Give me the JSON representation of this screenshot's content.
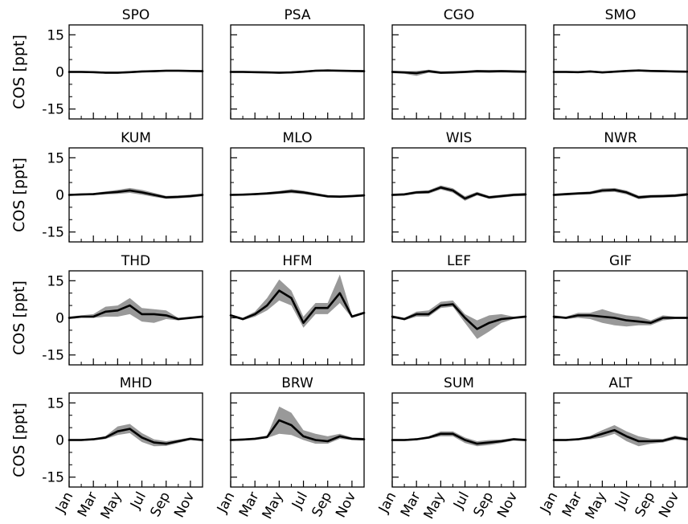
{
  "chart_data": {
    "type": "line",
    "ylabel": "COS [ppt]",
    "ylim": [
      -19,
      19
    ],
    "yticks": [
      15,
      0,
      -15
    ],
    "ytick_labels": [
      "15",
      "0",
      "-15"
    ],
    "xlim": [
      1,
      12
    ],
    "months": [
      1,
      2,
      3,
      4,
      5,
      6,
      7,
      8,
      9,
      10,
      11,
      12
    ],
    "xtick_labels": [
      "Jan",
      "Mar",
      "May",
      "Jul",
      "Sep",
      "Nov"
    ],
    "colors": {
      "mean_line": "#000000",
      "band": "#999999"
    },
    "panels": [
      {
        "title": "SPO",
        "mean": [
          0,
          0,
          -0.1,
          -0.3,
          -0.3,
          -0.1,
          0.2,
          0.3,
          0.5,
          0.5,
          0.4,
          0.3
        ],
        "lower": [
          -0.4,
          -0.4,
          -0.5,
          -0.7,
          -0.7,
          -0.5,
          -0.2,
          -0.1,
          0.1,
          0.1,
          0,
          -0.1
        ],
        "upper": [
          0.4,
          0.4,
          0.3,
          0.1,
          0.1,
          0.3,
          0.6,
          0.7,
          0.9,
          0.9,
          0.8,
          0.7
        ]
      },
      {
        "title": "PSA",
        "mean": [
          0,
          0,
          -0.1,
          -0.2,
          -0.3,
          -0.2,
          0.1,
          0.5,
          0.6,
          0.5,
          0.4,
          0.3
        ],
        "lower": [
          -0.4,
          -0.4,
          -0.5,
          -0.6,
          -0.7,
          -0.6,
          -0.3,
          0.1,
          0.2,
          0.1,
          0,
          -0.1
        ],
        "upper": [
          0.4,
          0.4,
          0.3,
          0.2,
          0.1,
          0.2,
          0.5,
          0.9,
          1.0,
          0.9,
          0.8,
          0.7
        ]
      },
      {
        "title": "CGO",
        "mean": [
          0,
          -0.2,
          -0.5,
          0.3,
          -0.3,
          -0.2,
          0,
          0.3,
          0.2,
          0.3,
          0.2,
          0.1
        ],
        "lower": [
          -0.5,
          -0.7,
          -1.6,
          -0.3,
          -0.8,
          -0.7,
          -0.5,
          -0.3,
          -0.3,
          -0.2,
          -0.3,
          -0.4
        ],
        "upper": [
          0.5,
          0.3,
          0.4,
          0.9,
          0.2,
          0.3,
          0.5,
          0.8,
          0.8,
          0.8,
          0.7,
          0.6
        ]
      },
      {
        "title": "SMO",
        "mean": [
          0,
          0,
          -0.1,
          0.2,
          -0.2,
          0.1,
          0.4,
          0.6,
          0.4,
          0.3,
          0.2,
          0.1
        ],
        "lower": [
          -0.4,
          -0.4,
          -0.5,
          -0.2,
          -0.6,
          -0.3,
          0,
          0.2,
          0,
          -0.1,
          -0.2,
          -0.3
        ],
        "upper": [
          0.4,
          0.4,
          0.3,
          0.6,
          0.2,
          0.5,
          0.8,
          1.0,
          0.8,
          0.7,
          0.6,
          0.5
        ]
      },
      {
        "title": "KUM",
        "mean": [
          0,
          0.2,
          0.3,
          0.8,
          1.2,
          1.8,
          1.0,
          0,
          -1.0,
          -0.8,
          -0.5,
          0
        ],
        "lower": [
          -0.4,
          -0.2,
          -0.1,
          0.2,
          0.4,
          0.8,
          0.1,
          -0.8,
          -1.6,
          -1.4,
          -1.1,
          -0.6
        ],
        "upper": [
          0.4,
          0.6,
          0.7,
          1.4,
          2.0,
          2.8,
          2.0,
          0.8,
          -0.4,
          -0.2,
          0.1,
          0.6
        ]
      },
      {
        "title": "MLO",
        "mean": [
          0,
          0.1,
          0.3,
          0.6,
          1.0,
          1.5,
          1.0,
          0.2,
          -0.6,
          -0.7,
          -0.5,
          -0.2
        ],
        "lower": [
          -0.4,
          -0.3,
          -0.1,
          0.1,
          0.4,
          0.7,
          0.3,
          -0.4,
          -1.1,
          -1.2,
          -1.0,
          -0.7
        ],
        "upper": [
          0.4,
          0.5,
          0.7,
          1.1,
          1.6,
          2.3,
          1.7,
          0.8,
          -0.1,
          -0.2,
          0,
          0.3
        ]
      },
      {
        "title": "WIS",
        "mean": [
          0,
          0.2,
          1.0,
          1.2,
          3.0,
          1.8,
          -1.5,
          0.5,
          -1.0,
          -0.5,
          0,
          0.2
        ],
        "lower": [
          -0.5,
          -0.3,
          0.4,
          0.5,
          2.2,
          0.9,
          -2.4,
          -0.2,
          -1.6,
          -1.1,
          -0.6,
          -0.4
        ],
        "upper": [
          0.5,
          0.7,
          1.6,
          1.9,
          3.8,
          2.7,
          -0.6,
          1.2,
          -0.4,
          0.1,
          0.6,
          0.8
        ]
      },
      {
        "title": "NWR",
        "mean": [
          0,
          0.3,
          0.6,
          0.8,
          1.8,
          2.0,
          1.0,
          -1.0,
          -0.6,
          -0.5,
          -0.3,
          0.2
        ],
        "lower": [
          -0.5,
          -0.2,
          0.1,
          0.2,
          1.0,
          1.2,
          0.2,
          -1.7,
          -1.2,
          -1.1,
          -0.9,
          -0.4
        ],
        "upper": [
          0.5,
          0.8,
          1.1,
          1.4,
          2.6,
          2.8,
          1.8,
          -0.3,
          0,
          0.1,
          0.3,
          0.8
        ]
      },
      {
        "title": "THD",
        "mean": [
          0,
          0.5,
          0.5,
          2.5,
          3.0,
          5.0,
          1.5,
          1.5,
          1.0,
          -0.5,
          0,
          0.5
        ],
        "lower": [
          -0.5,
          0,
          0,
          0.5,
          0.5,
          1.5,
          -1.5,
          -2.0,
          -0.5,
          -1.0,
          -0.5,
          0
        ],
        "upper": [
          0.5,
          1.0,
          1.5,
          4.5,
          5.0,
          8.0,
          4.0,
          3.5,
          3.0,
          0,
          0.5,
          1.0
        ]
      },
      {
        "title": "HFM",
        "mean": [
          1.0,
          -0.5,
          1.5,
          5.0,
          11.0,
          8.0,
          -2.0,
          4.0,
          4.0,
          10.0,
          0.5,
          2.0
        ],
        "lower": [
          0.5,
          -1.0,
          0.5,
          3.0,
          7.0,
          5.0,
          -4.0,
          1.5,
          1.5,
          6.0,
          0,
          1.5
        ],
        "upper": [
          1.5,
          0,
          2.5,
          8.0,
          15.5,
          11.0,
          0.5,
          6.0,
          6.0,
          17.5,
          1.0,
          2.5
        ]
      },
      {
        "title": "LEF",
        "mean": [
          0.5,
          -0.5,
          1.5,
          1.5,
          5.0,
          5.5,
          0,
          -4.5,
          -2.0,
          -0.5,
          0,
          0.5
        ],
        "lower": [
          0,
          -1.0,
          0.5,
          0.5,
          4.0,
          4.5,
          -2.0,
          -8.5,
          -5.5,
          -2.0,
          -0.5,
          0
        ],
        "upper": [
          1.0,
          0,
          2.5,
          3.0,
          6.5,
          7.0,
          1.5,
          -1.0,
          1.0,
          1.5,
          0.5,
          1.0
        ]
      },
      {
        "title": "GIF",
        "mean": [
          0.5,
          0,
          1.0,
          1.0,
          0.5,
          0,
          -1.0,
          -1.5,
          -2.0,
          0,
          0,
          0
        ],
        "lower": [
          0,
          -0.5,
          0,
          -0.5,
          -2.0,
          -3.0,
          -3.5,
          -3.0,
          -3.0,
          -1.0,
          -0.5,
          -0.5
        ],
        "upper": [
          1.0,
          0.5,
          2.0,
          2.0,
          3.5,
          2.0,
          1.0,
          0.5,
          -1.0,
          1.0,
          0.5,
          0.5
        ]
      },
      {
        "title": "MHD",
        "mean": [
          0,
          0,
          0.3,
          1.0,
          3.5,
          4.5,
          1.0,
          -1.0,
          -1.5,
          -0.5,
          0.5,
          0
        ],
        "lower": [
          -0.4,
          -0.4,
          -0.1,
          0.4,
          2.0,
          2.8,
          -0.8,
          -2.5,
          -2.4,
          -1.2,
          0,
          -0.5
        ],
        "upper": [
          0.4,
          0.4,
          0.7,
          1.6,
          5.5,
          6.5,
          2.8,
          0.3,
          -0.5,
          0.2,
          1.0,
          0.5
        ]
      },
      {
        "title": "BRW",
        "mean": [
          0,
          0.2,
          0.5,
          1.2,
          8.0,
          6.0,
          1.5,
          0,
          -0.5,
          1.5,
          0.5,
          0.3
        ],
        "lower": [
          -0.4,
          -0.2,
          0,
          0.8,
          2.5,
          2.0,
          0,
          -1.5,
          -1.5,
          0.5,
          0,
          -0.2
        ],
        "upper": [
          0.4,
          0.6,
          1.0,
          1.8,
          13.5,
          11.0,
          4.0,
          2.5,
          1.5,
          2.5,
          1.0,
          0.8
        ]
      },
      {
        "title": "SUM",
        "mean": [
          0,
          0,
          0.3,
          1.0,
          2.5,
          2.5,
          0,
          -1.5,
          -1.0,
          -0.5,
          0.3,
          0
        ],
        "lower": [
          -0.4,
          -0.4,
          -0.1,
          0.5,
          1.5,
          1.5,
          -1.2,
          -2.5,
          -2.0,
          -1.2,
          -0.2,
          -0.5
        ],
        "upper": [
          0.4,
          0.4,
          0.7,
          1.5,
          3.5,
          3.5,
          1.0,
          -0.5,
          0,
          0.2,
          0.8,
          0.5
        ]
      },
      {
        "title": "ALT",
        "mean": [
          0,
          0,
          0.3,
          1.0,
          2.5,
          4.0,
          1.5,
          -0.5,
          -0.5,
          -0.3,
          1.0,
          0.3
        ],
        "lower": [
          -0.4,
          -0.4,
          -0.1,
          0.3,
          1.0,
          2.5,
          -0.5,
          -2.5,
          -1.5,
          -1.0,
          0.2,
          -0.3
        ],
        "upper": [
          0.4,
          0.4,
          0.7,
          1.7,
          4.0,
          6.0,
          3.5,
          1.5,
          0.5,
          0.4,
          1.8,
          0.9
        ]
      }
    ]
  }
}
